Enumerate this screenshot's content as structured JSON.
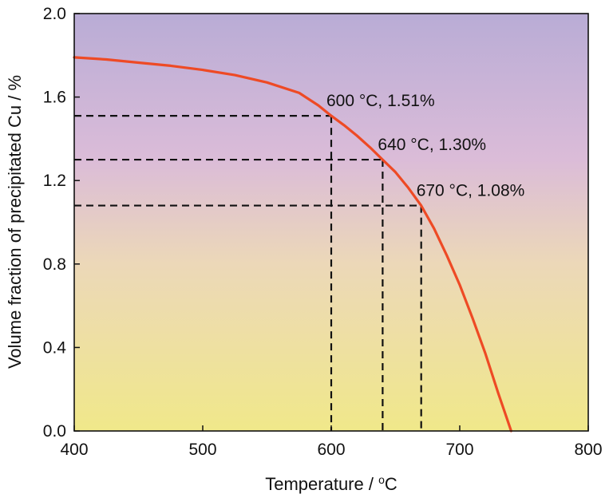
{
  "chart_data": {
    "type": "line",
    "title": "",
    "xlabel": "Temperature / ",
    "xlabel_unit": "°C",
    "ylabel": "Volume fraction of precipitated Cu / %",
    "xlim": [
      400,
      800
    ],
    "ylim": [
      0.0,
      2.0
    ],
    "xticks": [
      400,
      500,
      600,
      700,
      800
    ],
    "yticks": [
      0.0,
      0.4,
      0.8,
      1.2,
      1.6,
      2.0
    ],
    "xtick_labels": [
      "400",
      "500",
      "600",
      "700",
      "800"
    ],
    "ytick_labels": [
      "0.0",
      "0.4",
      "0.8",
      "1.2",
      "1.6",
      "2.0"
    ],
    "grid": false,
    "background_gradient": [
      "#b9acd6",
      "#dbbcd8",
      "#ecd8b8",
      "#f0e88a"
    ],
    "series": [
      {
        "name": "Volume fraction of precipitated Cu",
        "color": "#ee4a25",
        "x": [
          400,
          425,
          450,
          475,
          500,
          525,
          550,
          575,
          590,
          600,
          610,
          620,
          630,
          640,
          650,
          660,
          670,
          680,
          690,
          700,
          710,
          720,
          730,
          735,
          740
        ],
        "y": [
          1.79,
          1.78,
          1.765,
          1.75,
          1.73,
          1.705,
          1.67,
          1.62,
          1.56,
          1.51,
          1.465,
          1.415,
          1.36,
          1.3,
          1.24,
          1.165,
          1.08,
          0.97,
          0.84,
          0.7,
          0.54,
          0.37,
          0.18,
          0.09,
          0.0
        ]
      }
    ],
    "annotations": [
      {
        "x": 600,
        "y": 1.51,
        "label": "600 °C, 1.51%"
      },
      {
        "x": 640,
        "y": 1.3,
        "label": "640 °C, 1.30%"
      },
      {
        "x": 670,
        "y": 1.08,
        "label": "670 °C, 1.08%"
      }
    ]
  }
}
